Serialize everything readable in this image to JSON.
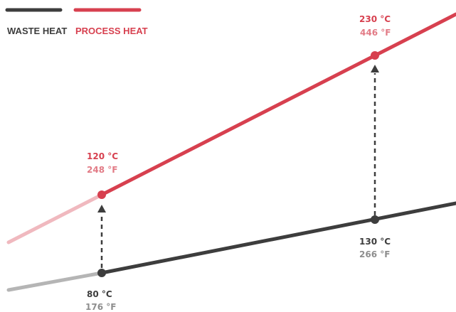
{
  "colors": {
    "process": "#d7404f",
    "process_faded": "#f0b9bf",
    "process_f_text": "#e27b86",
    "waste": "#3d3d3d",
    "waste_faded": "#b5b5b5",
    "waste_f_text": "#8e8e8e",
    "connector": "#3d3d3d"
  },
  "legend": {
    "waste_label": "WASTE HEAT",
    "process_label": "PROCESS HEAT"
  },
  "chart_data": {
    "type": "line",
    "title": "",
    "series": [
      {
        "name": "WASTE HEAT",
        "points": [
          {
            "c": "80 °C",
            "f": "176 °F",
            "value": 80
          },
          {
            "c": "130 °C",
            "f": "266 °F",
            "value": 130
          }
        ]
      },
      {
        "name": "PROCESS HEAT",
        "points": [
          {
            "c": "120 °C",
            "f": "248 °F",
            "value": 120
          },
          {
            "c": "230 °C",
            "f": "446 °F",
            "value": 230
          }
        ]
      }
    ],
    "arrows": [
      {
        "from": "80 °C",
        "to": "120 °C"
      },
      {
        "from": "130 °C",
        "to": "230 °C"
      }
    ]
  }
}
